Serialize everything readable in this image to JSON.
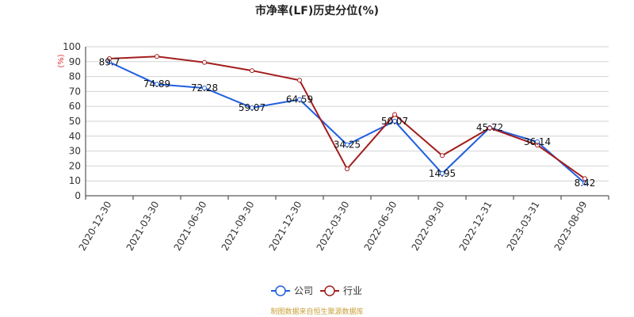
{
  "chart_data": {
    "type": "line",
    "title": "市净率(LF)历史分位(%)",
    "ylabel": "(%)",
    "xlabel": "",
    "ylim": [
      0,
      100
    ],
    "yticks": [
      0,
      10,
      20,
      30,
      40,
      50,
      60,
      70,
      80,
      90,
      100
    ],
    "categories": [
      "2020-12-30",
      "2021-03-30",
      "2021-06-30",
      "2021-09-30",
      "2021-12-30",
      "2022-03-30",
      "2022-06-30",
      "2022-09-30",
      "2022-12-31",
      "2023-03-31",
      "2023-08-09"
    ],
    "series": [
      {
        "name": "公司",
        "color": "#1f5fe0",
        "values": [
          89.7,
          74.89,
          72.28,
          59.07,
          64.59,
          34.25,
          50.07,
          14.95,
          45.72,
          36.14,
          8.42
        ],
        "labels": [
          "89.7",
          "74.89",
          "72.28",
          "59.07",
          "64.59",
          "34.25",
          "50.07",
          "14.95",
          "45.72",
          "36.14",
          "8.42"
        ]
      },
      {
        "name": "行业",
        "color": "#a31d1d",
        "values": [
          92,
          93.5,
          89.5,
          84,
          77.5,
          18,
          54.5,
          27,
          45.5,
          34,
          11.5
        ]
      }
    ],
    "grid": true,
    "legend_position": "bottom"
  },
  "footer": {
    "source": "制图数据来自恒生聚源数据库"
  }
}
